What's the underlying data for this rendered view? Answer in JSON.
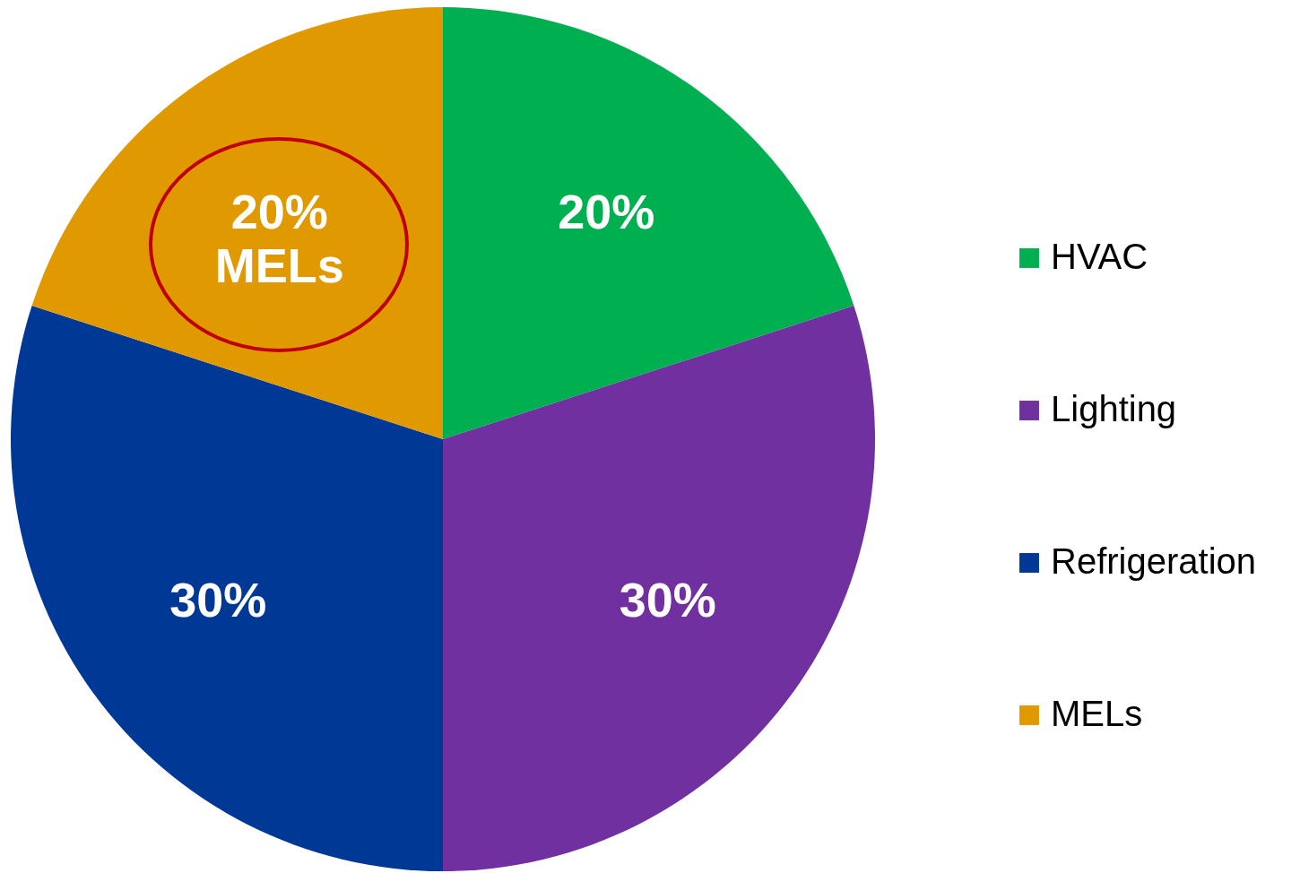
{
  "chart_data": {
    "type": "pie",
    "categories": [
      "HVAC",
      "Lighting",
      "Refrigeration",
      "MELs"
    ],
    "values": [
      20,
      30,
      30,
      20
    ],
    "colors": [
      "#00b050",
      "#7030a0",
      "#003896",
      "#e09a00"
    ],
    "value_labels": [
      "20%",
      "30%",
      "30%",
      "20%\nMELs"
    ],
    "legend": "right"
  }
}
